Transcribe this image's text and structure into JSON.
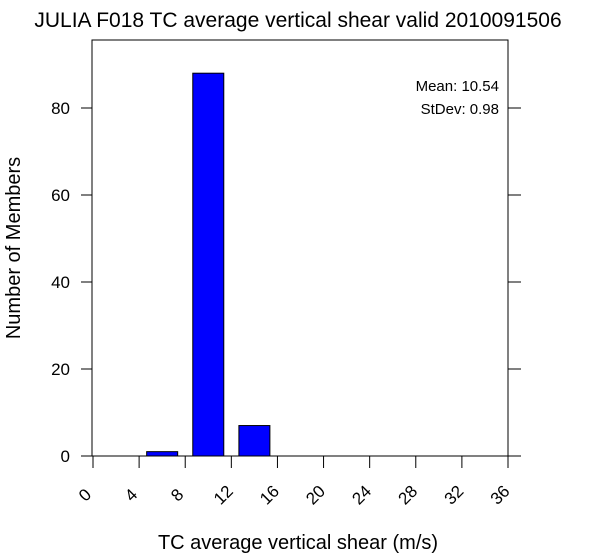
{
  "chart_data": {
    "type": "bar",
    "title": "JULIA F018 TC average vertical shear valid 2010091506",
    "xlabel": "TC average vertical shear (m/s)",
    "ylabel": "Number of Members",
    "xlim": [
      0,
      36
    ],
    "ylim": [
      0,
      92
    ],
    "x_ticks": [
      "0",
      "4",
      "8",
      "12",
      "16",
      "20",
      "24",
      "28",
      "32",
      "36"
    ],
    "y_ticks": [
      "0",
      "20",
      "40",
      "60",
      "80"
    ],
    "bins": [
      {
        "from": 4,
        "to": 8,
        "value": 1
      },
      {
        "from": 8,
        "to": 12,
        "value": 88
      },
      {
        "from": 12,
        "to": 16,
        "value": 7
      }
    ],
    "bar_color": "#0000ff",
    "annotations": {
      "mean": "Mean: 10.54",
      "stdev": "StDev: 0.98"
    },
    "grid": false
  }
}
